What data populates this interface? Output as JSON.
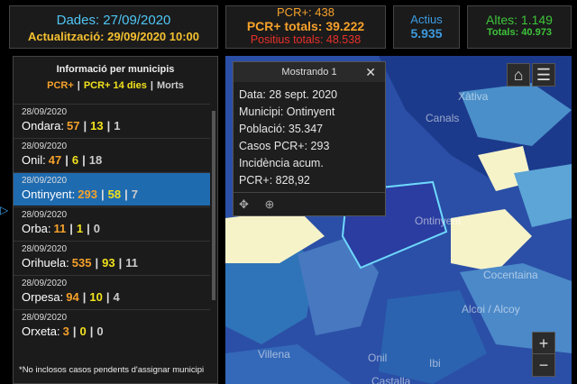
{
  "header": {
    "date": "Dades: 27/09/2020",
    "updated": "Actualització: 29/09/2020 10:00"
  },
  "pcr": {
    "daily": "PCR+: 438",
    "total": "PCR+ totals: 39.222",
    "positives": "Positius totals: 48.538"
  },
  "active": {
    "label": "Actius",
    "value": "5.935"
  },
  "discharges": {
    "daily": "Altes: 1.149",
    "total": "Totals: 40.973"
  },
  "panel": {
    "title": "Informació per municipis",
    "legend": [
      "PCR+",
      "PCR+ 14 dies",
      "Morts"
    ],
    "separator": "|",
    "items": [
      {
        "date": "28/09/2020",
        "name": "Ondara:",
        "pcr": 57,
        "pcr14": 13,
        "deaths": 1
      },
      {
        "date": "28/09/2020",
        "name": "Onil:",
        "pcr": 47,
        "pcr14": 6,
        "deaths": 18
      },
      {
        "date": "28/09/2020",
        "name": "Ontinyent:",
        "pcr": 293,
        "pcr14": 58,
        "deaths": 7
      },
      {
        "date": "28/09/2020",
        "name": "Orba:",
        "pcr": 11,
        "pcr14": 1,
        "deaths": 0
      },
      {
        "date": "28/09/2020",
        "name": "Orihuela:",
        "pcr": 535,
        "pcr14": 93,
        "deaths": 11
      },
      {
        "date": "28/09/2020",
        "name": "Orpesa:",
        "pcr": 94,
        "pcr14": 10,
        "deaths": 4
      },
      {
        "date": "28/09/2020",
        "name": "Orxeta:",
        "pcr": 3,
        "pcr14": 0,
        "deaths": 0
      }
    ],
    "footnote": "*No inclosos casos pendents d'assignar municipi"
  },
  "popup": {
    "title": "Mostrando 1",
    "lines": [
      "Data: 28 sept. 2020",
      "Municipi: Ontinyent",
      "Població: 35.347",
      "Casos PCR+: 293",
      "Incidència acum.",
      "PCR+: 828,92"
    ]
  },
  "map": {
    "labels": [
      "Xàtiva",
      "Canals",
      "Ontinyent",
      "Cocentaina",
      "Alcoi / Alcoy",
      "Villena",
      "Onil",
      "Ibi",
      "Castalla"
    ]
  }
}
